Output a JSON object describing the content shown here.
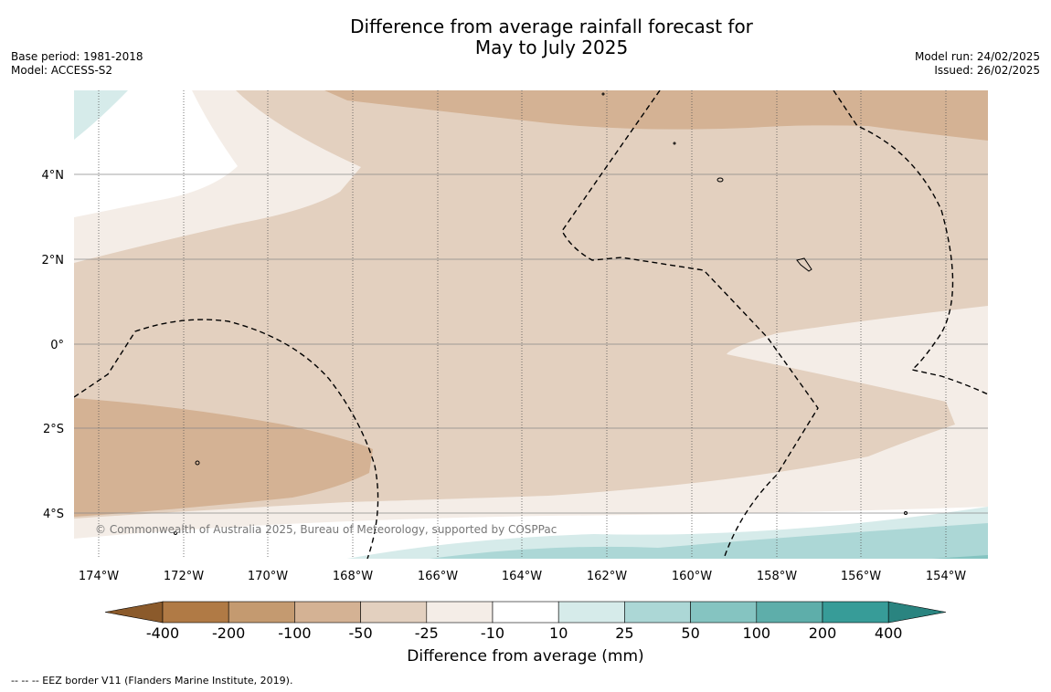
{
  "title_line1": "Difference from average rainfall forecast for",
  "title_line2": "May to July 2025",
  "meta_left": {
    "base_period": "Base period: 1981-2018",
    "model": "Model: ACCESS-S2"
  },
  "meta_right": {
    "model_run": "Model run: 24/02/2025",
    "issued": "Issued: 26/02/2025"
  },
  "copyright": "© Commonwealth of Australia 2025, Bureau of Meteorology, supported by COSPPac",
  "lat_labels": [
    "4°N",
    "2°N",
    "0°",
    "2°S",
    "4°S"
  ],
  "lon_labels": [
    "174°W",
    "172°W",
    "170°W",
    "168°W",
    "166°W",
    "164°W",
    "162°W",
    "160°W",
    "158°W",
    "156°W",
    "154°W"
  ],
  "colorbar": {
    "title": "Difference from average (mm)",
    "ticks": [
      "-400",
      "-200",
      "-100",
      "-50",
      "-25",
      "-10",
      "10",
      "25",
      "50",
      "100",
      "200",
      "400"
    ],
    "colors": [
      "#8b5a2b",
      "#b07a45",
      "#c49a70",
      "#d4b294",
      "#e3d0bf",
      "#f4ede7",
      "#ffffff",
      "#d6ebea",
      "#acd7d6",
      "#85c4c1",
      "#5eaeaa",
      "#379c98",
      "#2a8480"
    ]
  },
  "footer": "--  --  -- EEZ border V11 (Flanders Marine Institute, 2019)."
}
